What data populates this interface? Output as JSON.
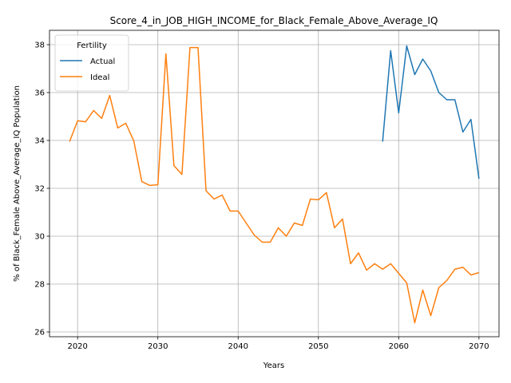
{
  "chart_data": {
    "type": "line",
    "title": "Score_4_in_JOB_HIGH_INCOME_for_Black_Female_Above_Average_IQ",
    "xlabel": "Years",
    "ylabel": "% of Black_Female Above_Average_IQ Population",
    "xlim": [
      2016.5,
      2072.5
    ],
    "ylim": [
      25.8,
      38.6
    ],
    "xticks": [
      2020,
      2030,
      2040,
      2050,
      2060,
      2070
    ],
    "yticks": [
      26,
      28,
      30,
      32,
      34,
      36,
      38
    ],
    "grid": true,
    "legend": {
      "title": "Fertility",
      "position": "top-left"
    },
    "series": [
      {
        "name": "Actual",
        "color": "#1f77b4",
        "x": [
          2058,
          2059,
          2060,
          2061,
          2062,
          2063,
          2064,
          2065,
          2066,
          2067,
          2068,
          2069,
          2070
        ],
        "y": [
          33.95,
          37.75,
          35.15,
          37.95,
          36.75,
          37.4,
          36.9,
          36.0,
          35.7,
          35.7,
          34.35,
          34.88,
          32.4
        ]
      },
      {
        "name": "Ideal",
        "color": "#ff7f0e",
        "x": [
          2019,
          2020,
          2021,
          2022,
          2023,
          2024,
          2025,
          2026,
          2027,
          2028,
          2029,
          2030,
          2031,
          2032,
          2033,
          2034,
          2035,
          2036,
          2037,
          2038,
          2039,
          2040,
          2041,
          2042,
          2043,
          2044,
          2045,
          2046,
          2047,
          2048,
          2049,
          2050,
          2051,
          2052,
          2053,
          2054,
          2055,
          2056,
          2057,
          2058,
          2059,
          2060,
          2061,
          2062,
          2063,
          2064,
          2065,
          2066,
          2067,
          2068,
          2069,
          2070
        ],
        "y": [
          33.95,
          34.82,
          34.78,
          35.25,
          34.92,
          35.88,
          34.52,
          34.72,
          33.98,
          32.28,
          32.12,
          32.15,
          37.62,
          32.95,
          32.58,
          37.88,
          37.88,
          31.9,
          31.55,
          31.72,
          31.05,
          31.05,
          30.55,
          30.05,
          29.75,
          29.75,
          30.35,
          30.0,
          30.55,
          30.45,
          31.55,
          31.52,
          31.82,
          30.35,
          30.72,
          28.85,
          29.3,
          28.58,
          28.85,
          28.62,
          28.85,
          28.45,
          28.05,
          26.38,
          27.75,
          26.68,
          27.85,
          28.15,
          28.62,
          28.7,
          28.38,
          28.48
        ]
      }
    ]
  }
}
